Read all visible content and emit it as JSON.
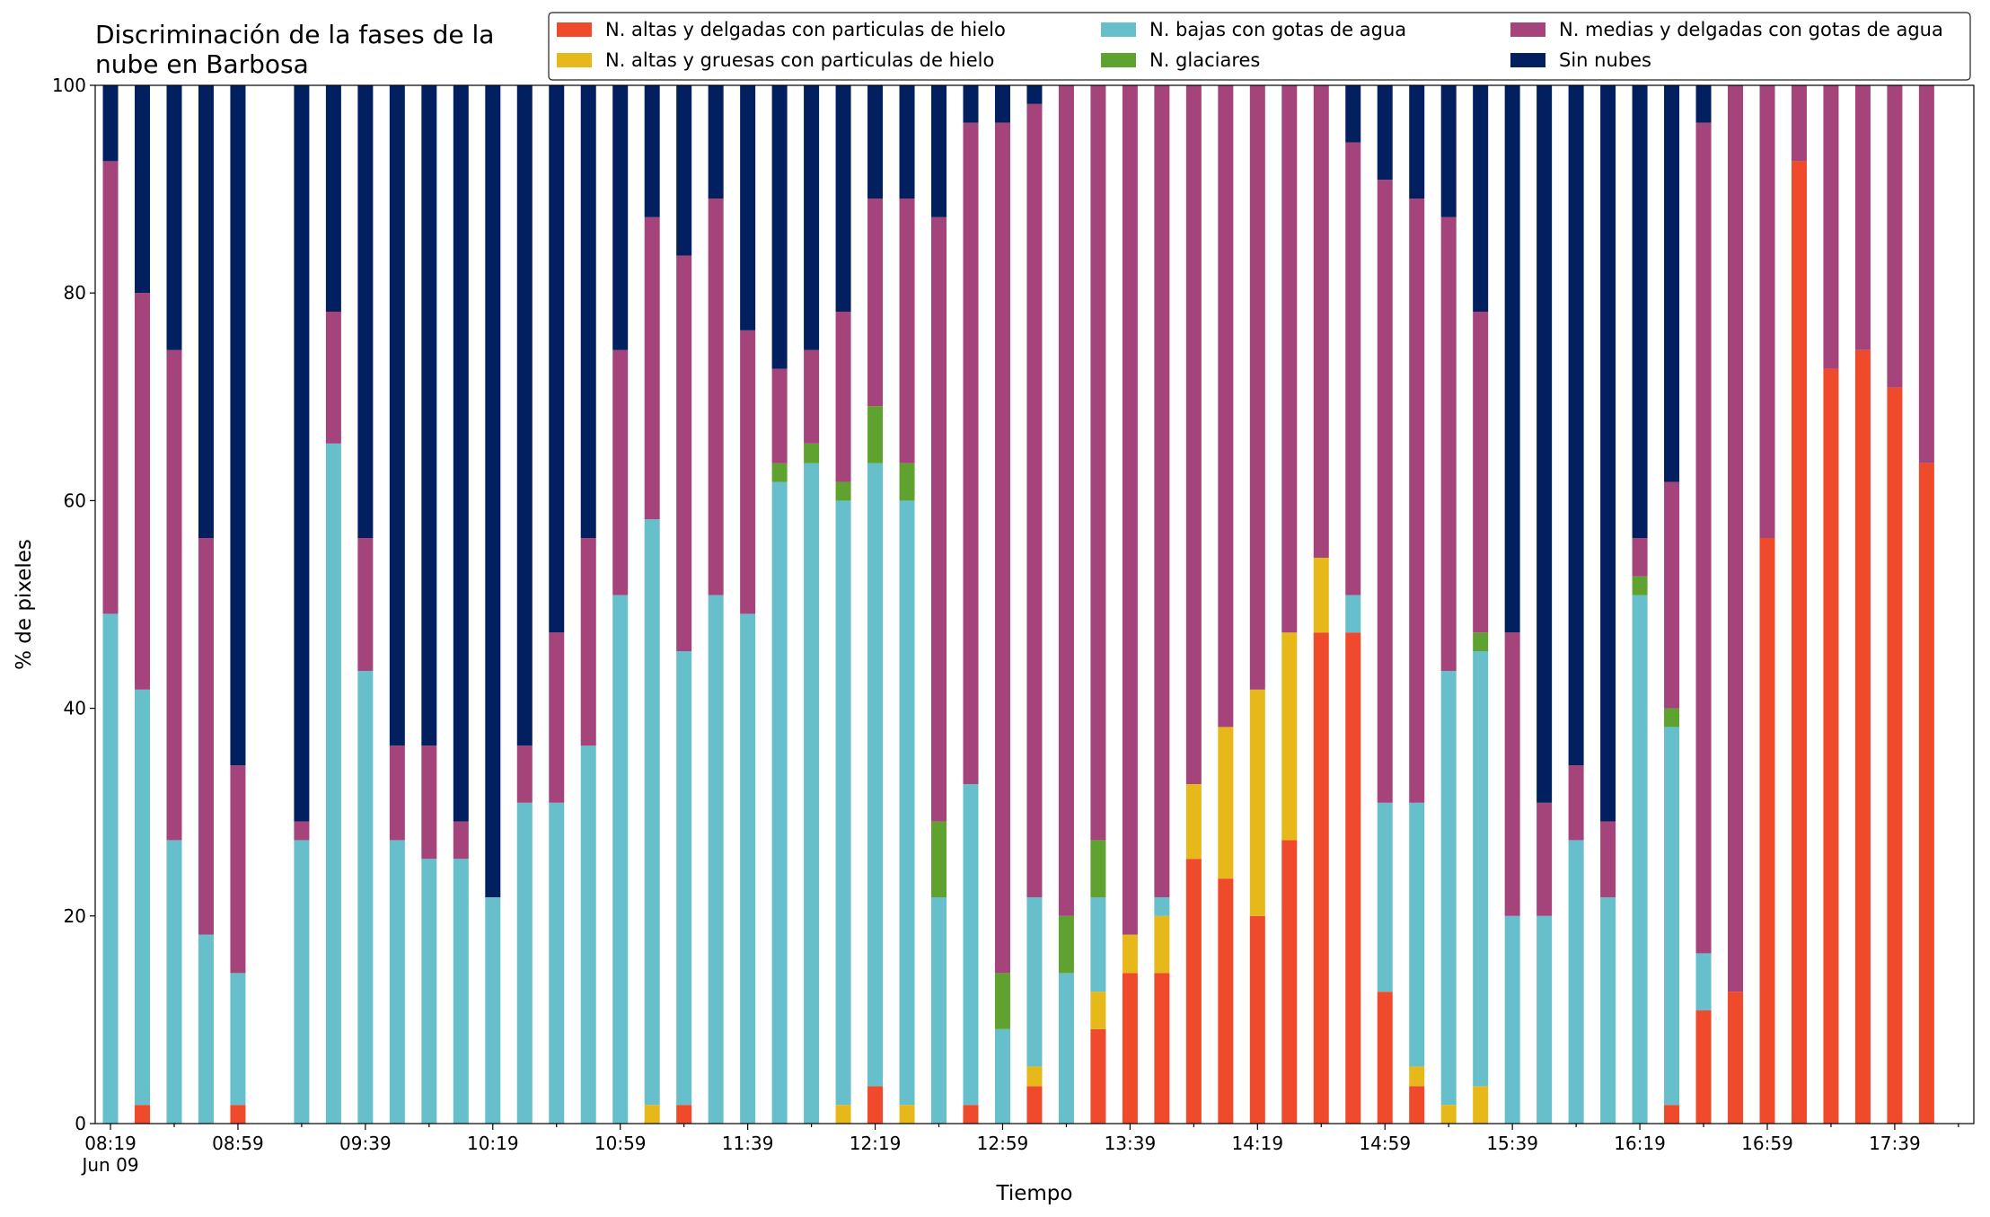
{
  "chart_data": {
    "type": "stacked_bar",
    "title": "Discriminación de la fases de la\nnube en Barbosa",
    "xlabel": "Tiempo",
    "ylabel": "% de pixeles",
    "x_sublabel": "Jun 09",
    "categories": [
      "08:19",
      null,
      null,
      null,
      "08:59",
      null,
      null,
      null,
      "09:39",
      null,
      null,
      null,
      "10:19",
      null,
      null,
      null,
      "10:59",
      null,
      null,
      null,
      "11:39",
      null,
      null,
      null,
      "12:19",
      null,
      null,
      null,
      "12:59",
      null,
      null,
      null,
      "13:39",
      null,
      null,
      null,
      "14:19",
      null,
      null,
      null,
      "14:59",
      null,
      null,
      null,
      "15:39",
      null,
      null,
      null,
      "16:19",
      null,
      null,
      null,
      "16:59",
      null,
      null,
      null,
      "17:39",
      null
    ],
    "ylim": [
      0,
      100
    ],
    "yticks": [
      0,
      20,
      40,
      60,
      80,
      100
    ],
    "legend": "upper right",
    "series": [
      {
        "name": "N. altas y delgadas con particulas de hielo",
        "color": "#ee4a2b",
        "values": [
          0,
          1.8,
          0,
          0,
          1.8,
          null,
          0,
          0,
          0,
          0,
          0,
          0,
          0,
          0,
          0,
          0,
          0,
          0,
          1.8,
          0,
          0,
          0,
          0,
          0,
          3.6,
          0,
          0,
          1.8,
          0,
          3.6,
          0,
          9.1,
          14.5,
          14.5,
          25.5,
          23.6,
          20.0,
          27.3,
          47.3,
          47.3,
          12.7,
          3.6,
          0,
          0,
          0,
          0,
          0,
          0,
          0,
          1.8,
          10.9,
          12.7,
          56.4,
          92.7,
          72.7,
          74.5,
          70.9,
          63.6
        ]
      },
      {
        "name": "N. altas y gruesas con particulas de hielo",
        "color": "#e6b81a",
        "values": [
          0,
          0,
          0,
          0,
          0,
          null,
          0,
          0,
          0,
          0,
          0,
          0,
          0,
          0,
          0,
          0,
          0,
          1.8,
          0,
          0,
          0,
          0,
          0,
          1.8,
          0,
          1.8,
          0,
          0,
          0,
          1.9,
          0,
          3.6,
          3.7,
          5.5,
          7.2,
          14.6,
          21.8,
          20.0,
          7.2,
          0,
          0,
          1.9,
          1.8,
          3.6,
          0,
          0,
          0,
          0,
          0,
          0,
          0,
          0,
          0,
          0,
          0,
          0,
          0,
          0
        ]
      },
      {
        "name": "N. bajas con gotas de agua",
        "color": "#66bfcb",
        "values": [
          49.1,
          40.0,
          27.3,
          18.2,
          12.7,
          null,
          27.3,
          65.5,
          43.6,
          27.3,
          25.5,
          25.5,
          21.8,
          30.9,
          30.9,
          36.4,
          50.9,
          56.4,
          43.7,
          50.9,
          49.1,
          61.8,
          63.6,
          58.2,
          60.0,
          58.2,
          21.8,
          30.9,
          9.1,
          16.3,
          14.5,
          9.1,
          0,
          1.8,
          0,
          0,
          0,
          0,
          0,
          3.6,
          18.2,
          25.4,
          41.8,
          41.9,
          20.0,
          20.0,
          27.3,
          21.8,
          50.9,
          36.4,
          5.5,
          0,
          0,
          0,
          0,
          0,
          0,
          0
        ]
      },
      {
        "name": "N. glaciares",
        "color": "#5fa22f",
        "values": [
          0,
          0,
          0,
          0,
          0,
          null,
          0,
          0,
          0,
          0,
          0,
          0,
          0,
          0,
          0,
          0,
          0,
          0,
          0,
          0,
          0,
          1.8,
          1.9,
          1.8,
          5.5,
          3.6,
          7.3,
          0,
          5.4,
          0,
          5.5,
          5.5,
          0,
          0,
          0,
          0,
          0,
          0,
          0,
          0,
          0,
          0,
          0,
          1.8,
          0,
          0,
          0,
          0,
          1.8,
          1.8,
          0,
          0,
          0,
          0,
          0,
          0,
          0,
          0
        ]
      },
      {
        "name": "N. medias y delgadas con gotas de agua",
        "color": "#a4447b",
        "values": [
          43.6,
          38.2,
          47.2,
          38.2,
          20.0,
          null,
          1.8,
          12.7,
          12.8,
          9.1,
          10.9,
          3.6,
          0,
          5.5,
          16.4,
          20.0,
          23.6,
          29.1,
          38.1,
          38.2,
          27.3,
          9.1,
          9.0,
          16.4,
          20.0,
          25.5,
          58.2,
          63.7,
          81.9,
          76.4,
          80.0,
          72.7,
          81.8,
          78.2,
          67.3,
          61.8,
          58.2,
          52.7,
          45.5,
          43.6,
          60.0,
          58.2,
          43.7,
          30.9,
          27.3,
          10.9,
          7.2,
          7.3,
          3.7,
          21.8,
          80.0,
          87.3,
          43.6,
          7.3,
          27.3,
          25.5,
          29.1,
          36.4
        ]
      },
      {
        "name": "Sin nubes",
        "color": "#02205f",
        "values": [
          7.3,
          20.0,
          25.5,
          43.6,
          65.5,
          null,
          70.9,
          21.8,
          43.6,
          63.6,
          63.6,
          70.9,
          78.2,
          63.6,
          52.7,
          43.6,
          25.5,
          12.7,
          16.4,
          10.9,
          23.6,
          27.3,
          25.5,
          21.8,
          10.9,
          10.9,
          12.7,
          3.6,
          3.6,
          1.8,
          0,
          0,
          0,
          0,
          0,
          0,
          0,
          0,
          0,
          5.5,
          9.1,
          10.9,
          12.7,
          21.8,
          52.7,
          69.1,
          65.5,
          70.9,
          43.6,
          38.2,
          3.6,
          0,
          0,
          0,
          0,
          0,
          0,
          0
        ]
      }
    ]
  }
}
